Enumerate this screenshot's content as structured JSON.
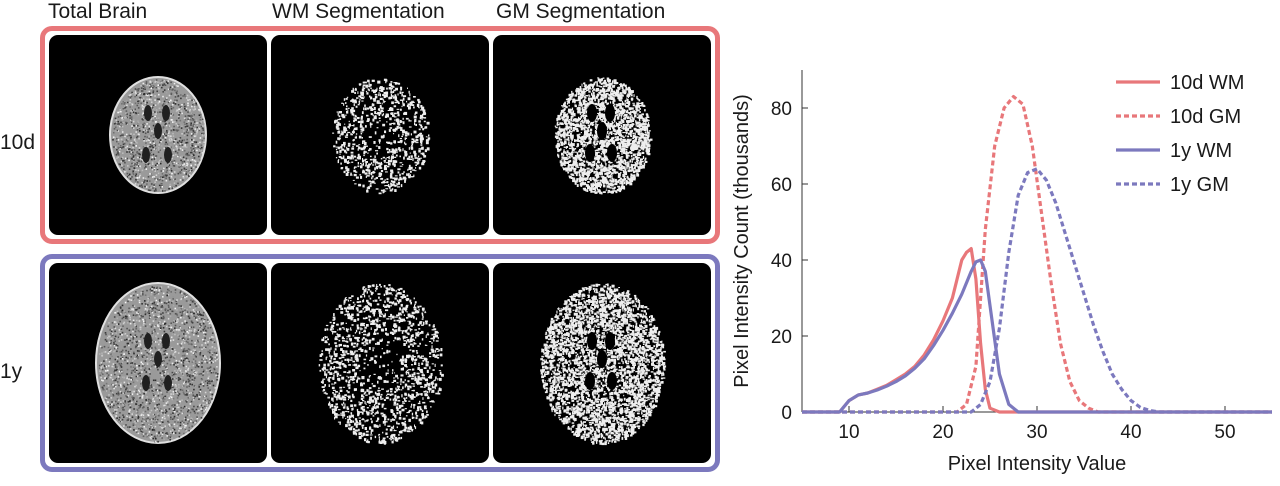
{
  "figure": {
    "columns": [
      "Total Brain",
      "WM Segmentation",
      "GM Segmentation"
    ],
    "rows": [
      {
        "label": "10d",
        "color": "#E8777A"
      },
      {
        "label": "1y",
        "color": "#7C79BE"
      }
    ]
  },
  "chart_data": {
    "type": "line",
    "xlabel": "Pixel Intensity Value",
    "ylabel": "Pixel Intensity Count (thousands)",
    "xlim": [
      5,
      55
    ],
    "ylim": [
      0,
      90
    ],
    "xticks": [
      10,
      20,
      30,
      40,
      50
    ],
    "yticks": [
      0,
      20,
      40,
      60,
      80
    ],
    "legend_position": "top-right",
    "grid": false,
    "series": [
      {
        "name": "10d WM",
        "color": "#E8777A",
        "dash": "solid",
        "x": [
          5,
          9,
          10,
          11,
          12,
          13,
          14,
          15,
          16,
          17,
          18,
          19,
          20,
          21,
          21.5,
          22,
          22.5,
          23,
          23.5,
          24,
          24.5,
          25,
          26,
          55
        ],
        "y": [
          0,
          0,
          3,
          4.5,
          5,
          6,
          7,
          8.5,
          10,
          12,
          15,
          19,
          24,
          30,
          35,
          40,
          42,
          43,
          35,
          18,
          6,
          1,
          0,
          0
        ]
      },
      {
        "name": "10d GM",
        "color": "#E8777A",
        "dash": "dashed",
        "x": [
          5,
          21.5,
          22.5,
          23.5,
          24.5,
          25.5,
          26.5,
          27.5,
          28.5,
          29.5,
          30.5,
          31.5,
          32.5,
          33.5,
          34.5,
          35.5,
          36.5,
          55
        ],
        "y": [
          0,
          0,
          2,
          12,
          48,
          70,
          80,
          83,
          81,
          70,
          52,
          34,
          18,
          8,
          3,
          1,
          0,
          0
        ]
      },
      {
        "name": "1y WM",
        "color": "#7C79BE",
        "dash": "solid",
        "x": [
          5,
          9,
          10,
          11,
          12,
          13,
          14,
          15,
          16,
          17,
          18,
          19,
          20,
          21,
          22,
          23,
          23.5,
          24,
          24.5,
          25,
          26,
          27,
          28,
          55
        ],
        "y": [
          0,
          0,
          3,
          4.5,
          5,
          5.8,
          6.8,
          8,
          9.5,
          11.5,
          14,
          17.5,
          21.5,
          26,
          31,
          37,
          39.5,
          40,
          37,
          28,
          10,
          2,
          0,
          0
        ]
      },
      {
        "name": "1y GM",
        "color": "#7C79BE",
        "dash": "dashed",
        "x": [
          5,
          23,
          24,
          25,
          26,
          27,
          28,
          29,
          30,
          31,
          32,
          33,
          34,
          35,
          36,
          37,
          38,
          39,
          40,
          41,
          42,
          43,
          55
        ],
        "y": [
          0,
          0,
          2,
          8,
          22,
          42,
          57,
          63,
          64,
          61,
          55,
          47,
          39,
          31,
          23,
          16,
          10,
          6,
          3,
          1.2,
          0.4,
          0,
          0
        ]
      }
    ]
  }
}
